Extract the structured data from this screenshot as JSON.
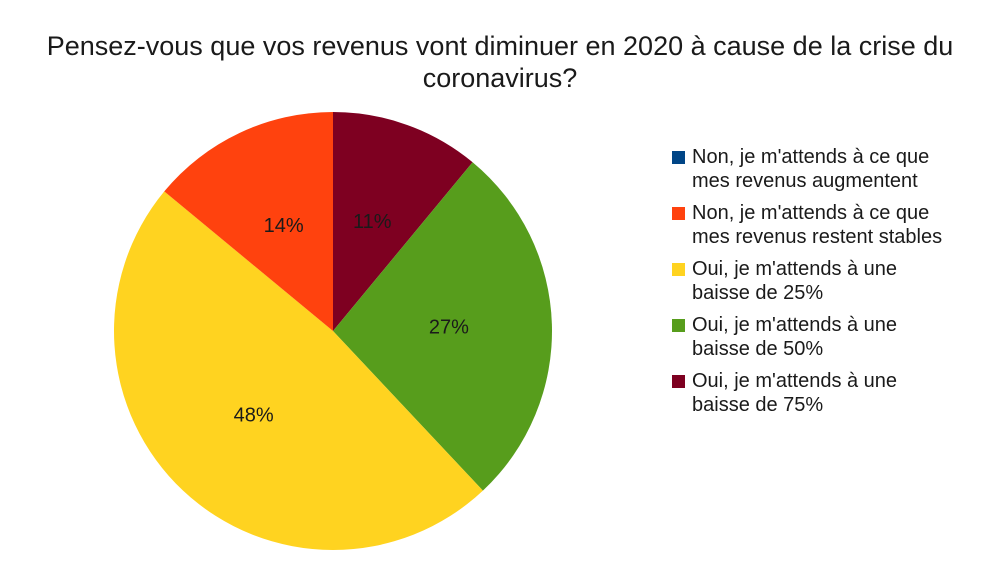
{
  "chart_data": {
    "type": "pie",
    "title_lines": [
      "Pensez-vous que vos revenus vont diminuer en 2020 à cause de la crise du",
      "coronavirus?"
    ],
    "slices": [
      {
        "label_lines": [
          "Non, je m'attends à ce que",
          "mes revenus augmentent"
        ],
        "value": 0,
        "data_label": "",
        "color": "#004586"
      },
      {
        "label_lines": [
          "Non, je m'attends à ce que",
          "mes revenus restent stables"
        ],
        "value": 14,
        "data_label": "14%",
        "color": "#ff420e"
      },
      {
        "label_lines": [
          "Oui, je m'attends à une",
          "baisse de 25%"
        ],
        "value": 48,
        "data_label": "48%",
        "color": "#ffd320"
      },
      {
        "label_lines": [
          "Oui, je m'attends à une",
          "baisse de 50%"
        ],
        "value": 27,
        "data_label": "27%",
        "color": "#579d1c"
      },
      {
        "label_lines": [
          "Oui, je m'attends à une",
          "baisse de 75%"
        ],
        "value": 11,
        "data_label": "11%",
        "color": "#7e0021"
      }
    ],
    "legend_position": "right"
  }
}
